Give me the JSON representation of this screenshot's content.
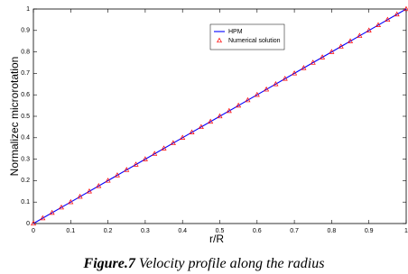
{
  "chart_data": {
    "type": "line",
    "xlabel": "r/R",
    "ylabel": "Normalizec microrotation",
    "caption_label": "Figure.7",
    "caption": "Velocity profile along the radius",
    "xlim": [
      0,
      1
    ],
    "ylim": [
      0,
      1
    ],
    "xticks": [
      0,
      0.1,
      0.2,
      0.3,
      0.4,
      0.5,
      0.6,
      0.7,
      0.8,
      0.9,
      1
    ],
    "yticks": [
      0,
      0.1,
      0.2,
      0.3,
      0.4,
      0.5,
      0.6,
      0.7,
      0.8,
      0.9,
      1
    ],
    "grid": false,
    "legend": "upper center",
    "series": [
      {
        "name": "HPM",
        "color": "#0000ff",
        "marker": "none",
        "x": [
          0,
          0.1,
          0.2,
          0.3,
          0.4,
          0.5,
          0.6,
          0.7,
          0.8,
          0.9,
          1
        ],
        "values": [
          0,
          0.1,
          0.2,
          0.3,
          0.4,
          0.5,
          0.6,
          0.7,
          0.8,
          0.9,
          1
        ]
      },
      {
        "name": "Numerical solution",
        "color": "#ff0000",
        "marker": "triangle",
        "x": [
          0,
          0.025,
          0.05,
          0.075,
          0.1,
          0.125,
          0.15,
          0.175,
          0.2,
          0.225,
          0.25,
          0.275,
          0.3,
          0.325,
          0.35,
          0.375,
          0.4,
          0.425,
          0.45,
          0.475,
          0.5,
          0.525,
          0.55,
          0.575,
          0.6,
          0.625,
          0.65,
          0.675,
          0.7,
          0.725,
          0.75,
          0.775,
          0.8,
          0.825,
          0.85,
          0.875,
          0.9,
          0.925,
          0.95,
          0.975,
          1
        ],
        "values": [
          0,
          0.025,
          0.05,
          0.075,
          0.1,
          0.125,
          0.15,
          0.175,
          0.2,
          0.225,
          0.25,
          0.275,
          0.3,
          0.325,
          0.35,
          0.375,
          0.4,
          0.425,
          0.45,
          0.475,
          0.5,
          0.525,
          0.55,
          0.575,
          0.6,
          0.625,
          0.65,
          0.675,
          0.7,
          0.725,
          0.75,
          0.775,
          0.8,
          0.825,
          0.85,
          0.875,
          0.9,
          0.925,
          0.95,
          0.975,
          1
        ]
      }
    ]
  }
}
